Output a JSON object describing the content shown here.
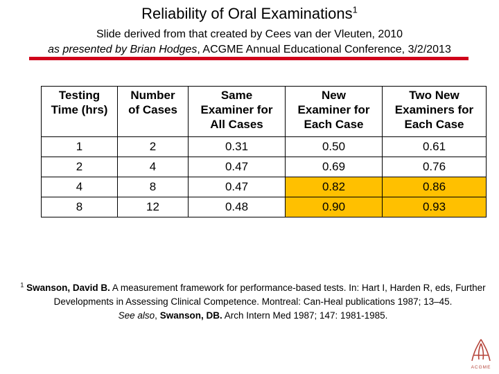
{
  "title": {
    "text": "Reliability of Oral Examinations",
    "sup": "1"
  },
  "subtitle": {
    "line1": "Slide derived from that created by Cees van der Vleuten, 2010",
    "presenter": "as presented by Brian Hodges",
    "event": ", ACGME Annual Educational Conference, 3/2/2013"
  },
  "table": {
    "headers": [
      [
        "Testing",
        "Time (hrs)"
      ],
      [
        "Number",
        "of Cases"
      ],
      [
        "Same",
        "Examiner for",
        "All Cases"
      ],
      [
        "New",
        "Examiner for",
        "Each Case"
      ],
      [
        "Two New",
        "Examiners for",
        "Each Case"
      ]
    ],
    "rows": [
      [
        "1",
        "2",
        "0.31",
        "0.50",
        "0.61"
      ],
      [
        "2",
        "4",
        "0.47",
        "0.69",
        "0.76"
      ],
      [
        "4",
        "8",
        "0.47",
        "0.82",
        "0.86"
      ],
      [
        "8",
        "12",
        "0.48",
        "0.90",
        "0.93"
      ]
    ],
    "highlight_color": "#ffc000"
  },
  "footnote": {
    "sup": "1",
    "author": "Swanson, David B.",
    "text1": " A measurement framework for performance-based tests. In: Hart I, Harden R, eds, Further Developments in Assessing Clinical Competence. Montreal: Can-Heal publications 1987; 13–45.",
    "see_also": "See also",
    "author2": "Swanson, DB.",
    "text2": " Arch Intern Med 1987; 147: 1981-1985."
  },
  "logo": {
    "text": "ACGME",
    "color": "#b5443a"
  },
  "rule_color": "#d0021b"
}
